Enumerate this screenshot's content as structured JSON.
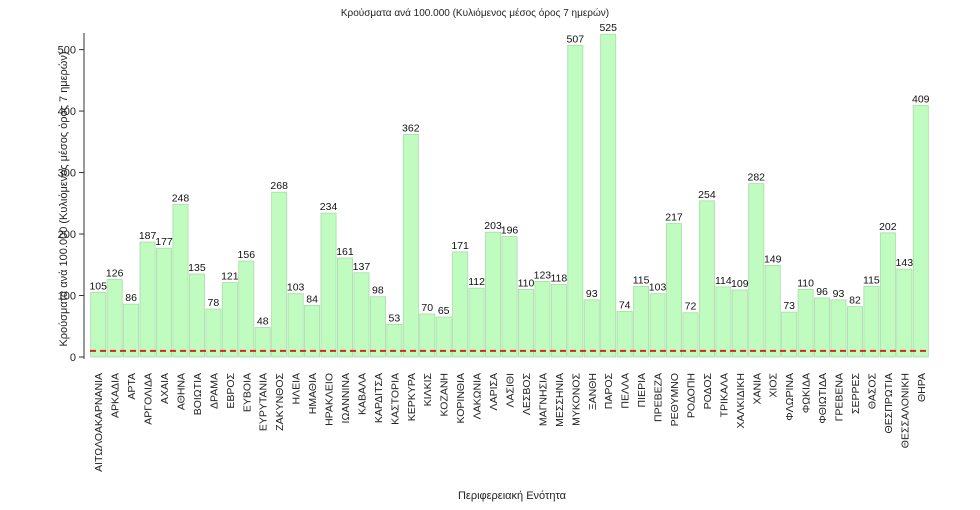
{
  "chart_data": {
    "type": "bar",
    "title": "Κρούσματα ανά 100.000 (Κυλιόμενος μέσος όρος 7 ημερών)",
    "xlabel": "Περιφερειακή Ενότητα",
    "ylabel": "Κρούσματα ανά 100.000 (Κυλιόμενος μέσος όρος 7 ημερών)",
    "ylim": [
      0,
      540
    ],
    "yticks": [
      0,
      100,
      200,
      300,
      400,
      500
    ],
    "reference_line": 10,
    "categories": [
      "ΑΙΤΩΛΟΑΚΑΡΝΑΝΙΑ",
      "ΑΡΚΑΔΙΑ",
      "ΑΡΤΑ",
      "ΑΡΓΟΛΙΔΑ",
      "ΑΧΑΙΑ",
      "ΑΘΗΝΑ",
      "ΒΟΙΩΤΙΑ",
      "ΔΡΑΜΑ",
      "ΕΒΡΟΣ",
      "ΕΥΒΟΙΑ",
      "ΕΥΡΥΤΑΝΙΑ",
      "ΖΑΚΥΝΘΟΣ",
      "ΗΛΕΙΑ",
      "ΗΜΑΘΙΑ",
      "ΗΡΑΚΛΕΙΟ",
      "ΙΩΑΝΝΙΝΑ",
      "ΚΑΒΑΛΑ",
      "ΚΑΡΔΙΤΣΑ",
      "ΚΑΣΤΟΡΙΑ",
      "ΚΕΡΚΥΡΑ",
      "ΚΙΛΚΙΣ",
      "ΚΟΖΑΝΗ",
      "ΚΟΡΙΝΘΙΑ",
      "ΛΑΚΩΝΙΑ",
      "ΛΑΡΙΣΑ",
      "ΛΑΣΙΘΙ",
      "ΛΕΣΒΟΣ",
      "ΜΑΓΝΗΣΙΑ",
      "ΜΕΣΣΗΝΙΑ",
      "ΜΥΚΟΝΟΣ",
      "ΞΑΝΘΗ",
      "ΠΑΡΟΣ",
      "ΠΕΛΛΑ",
      "ΠΙΕΡΙΑ",
      "ΠΡΕΒΕΖΑ",
      "ΡΕΘΥΜΝΟ",
      "ΡΟΔΟΠΗ",
      "ΡΟΔΟΣ",
      "ΤΡΙΚΑΛΑ",
      "ΧΑΛΚΙΔΙΚΗ",
      "ΧΑΝΙΑ",
      "ΧΙΟΣ",
      "ΦΛΩΡΙΝΑ",
      "ΦΩΚΙΔΑ",
      "ΦΘΙΩΤΙΔΑ",
      "ΓΡΕΒΕΝΑ",
      "ΣΕΡΡΕΣ",
      "ΘΑΣΟΣ",
      "ΘΕΣΠΡΩΤΙΑ",
      "ΘΕΣΣΑΛΟΝΙΚΗ",
      "ΘΗΡΑ"
    ],
    "values": [
      105,
      126,
      86,
      187,
      177,
      248,
      135,
      78,
      121,
      156,
      48,
      268,
      103,
      84,
      234,
      161,
      137,
      98,
      53,
      362,
      70,
      65,
      171,
      112,
      203,
      196,
      110,
      123,
      118,
      507,
      93,
      525,
      74,
      115,
      103,
      217,
      72,
      254,
      114,
      109,
      282,
      149,
      73,
      110,
      96,
      93,
      82,
      115,
      202,
      143,
      409
    ],
    "colors": {
      "bar_fill": "#c0fbc0",
      "bar_stroke": "#a8dca8",
      "reference_line": "#e02020"
    }
  }
}
